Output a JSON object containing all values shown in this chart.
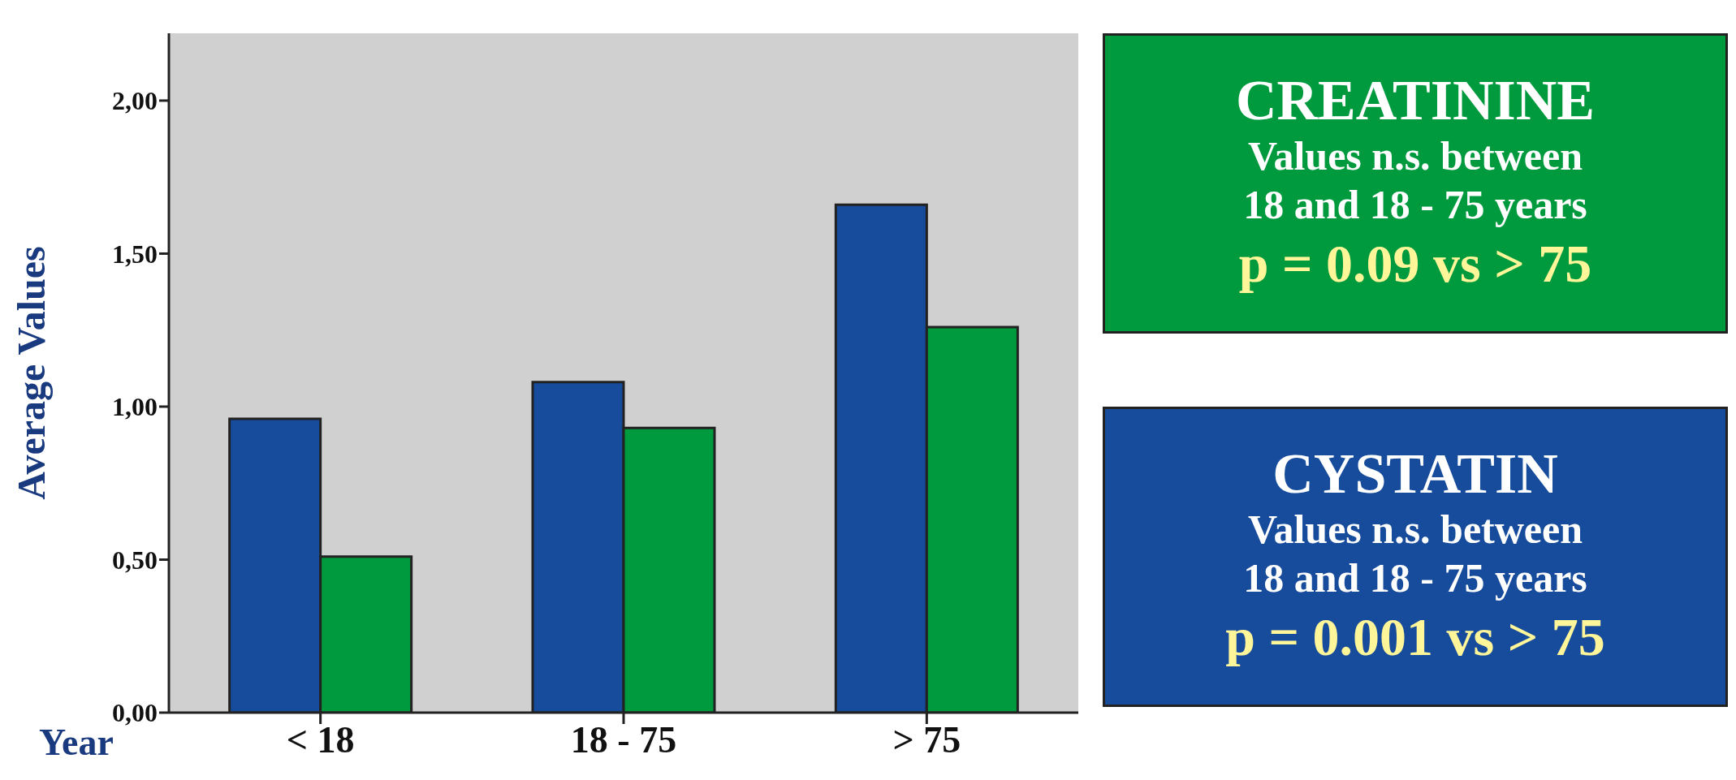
{
  "chart_data": {
    "type": "bar",
    "xlabel": "Year",
    "ylabel": "Average Values",
    "categories": [
      "< 18",
      "18 - 75",
      "> 75"
    ],
    "series": [
      {
        "color": "#174c9c",
        "values": [
          0.96,
          1.08,
          1.66
        ]
      },
      {
        "color": "#009a3e",
        "values": [
          0.51,
          0.93,
          1.26
        ]
      }
    ],
    "ylim": [
      0,
      2.22
    ],
    "yticks": [
      {
        "value": 0,
        "label": "0,00"
      },
      {
        "value": 0.5,
        "label": "0,50"
      },
      {
        "value": 1,
        "label": "1,00"
      },
      {
        "value": 1.5,
        "label": "1,50"
      },
      {
        "value": 2,
        "label": "2,00"
      }
    ],
    "grid": false,
    "annotations": [
      "CYSTATIN",
      "Values n.s. between 18 and 18 - 75 years",
      "p = 0.001 vs > 75",
      "CREATININE",
      "Values n.s. between 18 and 18 - 75 years",
      "p = 0.09 vs > 75"
    ]
  }
}
